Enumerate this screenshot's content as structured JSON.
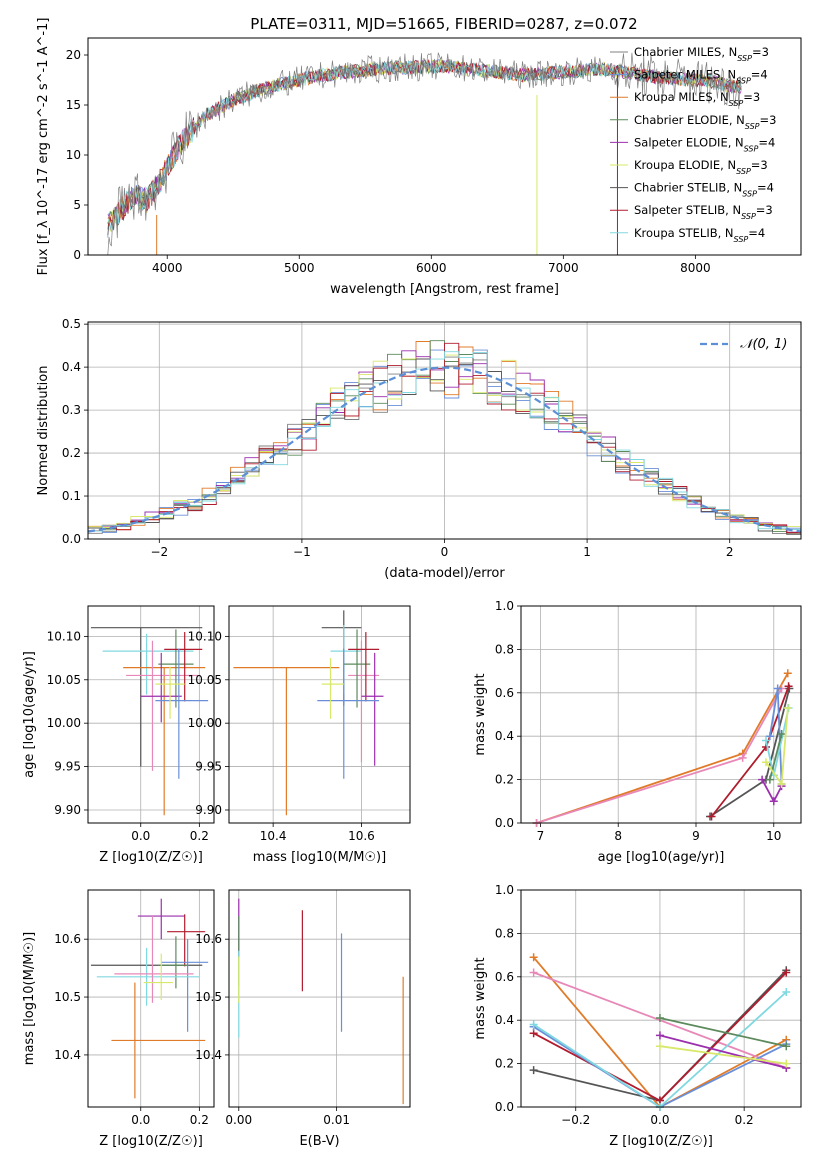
{
  "figure": {
    "title": "PLATE=0311, MJD=51665, FIBERID=0287, z=0.072"
  },
  "models": [
    {
      "name": "Chabrier MILES",
      "nssp": "3",
      "color": "#808080"
    },
    {
      "name": "Salpeter MILES",
      "nssp": "4",
      "color": "#6a8fd8"
    },
    {
      "name": "Kroupa MILES",
      "nssp": "3",
      "color": "#e07b2a"
    },
    {
      "name": "Chabrier ELODIE",
      "nssp": "3",
      "color": "#5c8a5c"
    },
    {
      "name": "Salpeter ELODIE",
      "nssp": "4",
      "color": "#9b2fae"
    },
    {
      "name": "Kroupa ELODIE",
      "nssp": "3",
      "color": "#d8e86a"
    },
    {
      "name": "Chabrier STELIB",
      "nssp": "4",
      "color": "#555555"
    },
    {
      "name": "Salpeter STELIB",
      "nssp": "3",
      "color": "#b01c2e"
    },
    {
      "name": "Kroupa STELIB",
      "nssp": "4",
      "color": "#80d8e0"
    }
  ],
  "pink_color": "#e888b8",
  "chart_data": [
    {
      "id": "spectrum",
      "type": "line",
      "xlabel": "wavelength [Angstrom, rest frame]",
      "ylabel": "Flux [f_λ 10^-17 erg cm^-2 s^-1 A^-1]",
      "xlim": [
        3400,
        8800
      ],
      "ylim": [
        0,
        21.7
      ],
      "xticks": [
        4000,
        5000,
        6000,
        7000,
        8000
      ],
      "yticks": [
        0,
        5,
        10,
        15,
        20
      ],
      "grid": false,
      "legend": "right",
      "continuum": {
        "x": [
          3550,
          3650,
          3750,
          3850,
          3950,
          4050,
          4150,
          4300,
          4500,
          4700,
          4900,
          5100,
          5300,
          5500,
          5700,
          5900,
          6100,
          6300,
          6500,
          6700,
          6900,
          7100,
          7300,
          7500,
          7700,
          7900,
          8100,
          8300
        ],
        "y": [
          3.0,
          4.5,
          6.0,
          5.5,
          7.5,
          10.0,
          12.0,
          14.0,
          15.5,
          16.5,
          17.2,
          17.8,
          18.2,
          18.5,
          18.7,
          18.8,
          18.9,
          18.6,
          18.3,
          18.0,
          18.2,
          18.4,
          18.6,
          18.2,
          17.8,
          17.6,
          17.4,
          16.8
        ]
      }
    },
    {
      "id": "residuals",
      "type": "line",
      "xlabel": "(data-model)/error",
      "ylabel": "Normed distribution",
      "xlim": [
        -2.5,
        2.5
      ],
      "ylim": [
        0,
        0.505
      ],
      "xticks": [
        -2,
        -1,
        0,
        1,
        2
      ],
      "yticks": [
        0.0,
        0.1,
        0.2,
        0.3,
        0.4,
        0.5
      ],
      "grid": true,
      "legend_label": "𝒩(0, 1)",
      "legend": "top-right",
      "gaussian_mean": 0,
      "gaussian_sigma": 1
    },
    {
      "id": "age_vs_Z",
      "type": "scatter",
      "xlabel": "Z [log10(Z/Z☉)]",
      "ylabel": "age [log10(age/yr)]",
      "xlim": [
        -0.18,
        0.25
      ],
      "ylim": [
        9.885,
        10.135
      ],
      "xticks": [
        0.0,
        0.2
      ],
      "yticks": [
        9.9,
        9.95,
        10.0,
        10.05,
        10.1
      ],
      "grid": true,
      "points": [
        {
          "c": "#555555",
          "x": 0.0,
          "xe": [
            0.17,
            0.21
          ],
          "y": 10.11,
          "ye": [
            0.16,
            0.0
          ]
        },
        {
          "c": "#80d8e0",
          "x": 0.02,
          "xe": [
            0.15,
            0.16
          ],
          "y": 10.083,
          "ye": [
            0.05,
            0.02
          ]
        },
        {
          "c": "#e07b2a",
          "x": 0.08,
          "xe": [
            0.14,
            0.14
          ],
          "y": 10.064,
          "ye": [
            0.17,
            0.0
          ]
        },
        {
          "c": "#e888b8",
          "x": 0.04,
          "xe": [
            0.09,
            0.16
          ],
          "y": 10.055,
          "ye": [
            0.11,
            0.04
          ]
        },
        {
          "c": "#5c8a5c",
          "x": 0.12,
          "xe": [
            0.06,
            0.06
          ],
          "y": 10.068,
          "ye": [
            0.05,
            0.04
          ]
        },
        {
          "c": "#b01c2e",
          "x": 0.15,
          "xe": [
            0.07,
            0.06
          ],
          "y": 10.085,
          "ye": [
            0.06,
            0.02
          ]
        },
        {
          "c": "#9b2fae",
          "x": 0.07,
          "xe": [
            0.07,
            0.07
          ],
          "y": 10.031,
          "ye": [
            0.03,
            0.05
          ]
        },
        {
          "c": "#6a8fd8",
          "x": 0.13,
          "xe": [
            0.08,
            0.1
          ],
          "y": 10.026,
          "ye": [
            0.09,
            0.06
          ]
        },
        {
          "c": "#d8e86a",
          "x": 0.1,
          "xe": [
            0.05,
            0.05
          ],
          "y": 10.045,
          "ye": [
            0.04,
            0.02
          ]
        }
      ]
    },
    {
      "id": "age_vs_mass",
      "type": "scatter",
      "xlabel": "mass [log10(M/M☉)]",
      "ylabel": "",
      "xlim": [
        10.3,
        10.71
      ],
      "ylim": [
        9.885,
        10.135
      ],
      "xticks": [
        10.4,
        10.6
      ],
      "yticks": [
        9.9,
        9.95,
        10.0,
        10.05,
        10.1
      ],
      "grid": true,
      "points": [
        {
          "c": "#555555",
          "x": 10.56,
          "xe": [
            0.05,
            0.04
          ],
          "y": 10.11,
          "ye": [
            0.09,
            0.02
          ]
        },
        {
          "c": "#80d8e0",
          "x": 10.56,
          "xe": [
            0.03,
            0.04
          ],
          "y": 10.083,
          "ye": [
            0.05,
            0.03
          ]
        },
        {
          "c": "#e07b2a",
          "x": 10.43,
          "xe": [
            0.12,
            0.12
          ],
          "y": 10.064,
          "ye": [
            0.17,
            0.0
          ]
        },
        {
          "c": "#e888b8",
          "x": 10.6,
          "xe": [
            0.03,
            0.04
          ],
          "y": 10.055,
          "ye": [
            0.1,
            0.04
          ]
        },
        {
          "c": "#5c8a5c",
          "x": 10.59,
          "xe": [
            0.03,
            0.03
          ],
          "y": 10.068,
          "ye": [
            0.05,
            0.04
          ]
        },
        {
          "c": "#b01c2e",
          "x": 10.61,
          "xe": [
            0.04,
            0.03
          ],
          "y": 10.085,
          "ye": [
            0.06,
            0.02
          ]
        },
        {
          "c": "#9b2fae",
          "x": 10.63,
          "xe": [
            0.03,
            0.02
          ],
          "y": 10.031,
          "ye": [
            0.08,
            0.05
          ]
        },
        {
          "c": "#6a8fd8",
          "x": 10.56,
          "xe": [
            0.06,
            0.08
          ],
          "y": 10.026,
          "ye": [
            0.09,
            0.06
          ]
        },
        {
          "c": "#d8e86a",
          "x": 10.53,
          "xe": [
            0.02,
            0.03
          ],
          "y": 10.045,
          "ye": [
            0.04,
            0.03
          ]
        }
      ]
    },
    {
      "id": "weight_vs_age",
      "type": "line",
      "xlabel": "age [log10(age/yr)]",
      "ylabel": "mass weight",
      "xlim": [
        6.75,
        10.35
      ],
      "ylim": [
        0,
        1.0
      ],
      "xticks": [
        7,
        8,
        9,
        10
      ],
      "yticks": [
        0.0,
        0.2,
        0.4,
        0.6,
        0.8,
        1.0
      ],
      "grid": true,
      "series": [
        {
          "c": "#e07b2a",
          "x": [
            6.95,
            9.6,
            10.18
          ],
          "y": [
            0.0,
            0.32,
            0.69
          ]
        },
        {
          "c": "#e888b8",
          "x": [
            6.95,
            9.6,
            10.1
          ],
          "y": [
            0.0,
            0.3,
            0.62
          ]
        },
        {
          "c": "#555555",
          "x": [
            9.18,
            9.9,
            10.2
          ],
          "y": [
            0.03,
            0.2,
            0.62
          ]
        },
        {
          "c": "#b01c2e",
          "x": [
            9.2,
            9.9,
            10.19
          ],
          "y": [
            0.03,
            0.35,
            0.63
          ]
        },
        {
          "c": "#6a8fd8",
          "x": [
            9.95,
            10.05,
            10.1
          ],
          "y": [
            0.4,
            0.62,
            0.18
          ]
        },
        {
          "c": "#80d8e0",
          "x": [
            9.9,
            10.0,
            10.19
          ],
          "y": [
            0.38,
            0.22,
            0.53
          ]
        },
        {
          "c": "#9b2fae",
          "x": [
            9.85,
            10.0,
            10.1
          ],
          "y": [
            0.2,
            0.1,
            0.17
          ]
        },
        {
          "c": "#5c8a5c",
          "x": [
            9.95,
            10.1
          ],
          "y": [
            0.2,
            0.41
          ]
        },
        {
          "c": "#d8e86a",
          "x": [
            9.9,
            10.1,
            10.18
          ],
          "y": [
            0.28,
            0.18,
            0.53
          ]
        }
      ]
    },
    {
      "id": "mass_vs_Z",
      "type": "scatter",
      "xlabel": "Z [log10(Z/Z☉)]",
      "ylabel": "mass [log10(M/M☉)]",
      "xlim": [
        -0.18,
        0.25
      ],
      "ylim": [
        10.31,
        10.685
      ],
      "xticks": [
        0.0,
        0.2
      ],
      "yticks": [
        10.4,
        10.5,
        10.6
      ],
      "grid": true,
      "points": [
        {
          "c": "#555555",
          "x": 0.0,
          "xe": [
            0.17,
            0.21
          ],
          "y": 10.555,
          "ye": [
            0.0,
            0.0
          ]
        },
        {
          "c": "#9b2fae",
          "x": 0.07,
          "xe": [
            0.08,
            0.08
          ],
          "y": 10.64,
          "ye": [
            0.04,
            0.03
          ]
        },
        {
          "c": "#b01c2e",
          "x": 0.15,
          "xe": [
            0.06,
            0.07
          ],
          "y": 10.613,
          "ye": [
            0.06,
            0.03
          ]
        },
        {
          "c": "#6a8fd8",
          "x": 0.16,
          "xe": [
            0.09,
            0.07
          ],
          "y": 10.56,
          "ye": [
            0.12,
            0.04
          ]
        },
        {
          "c": "#5c8a5c",
          "x": 0.12,
          "xe": [
            0.06,
            0.04
          ],
          "y": 10.555,
          "ye": [
            0.04,
            0.05
          ]
        },
        {
          "c": "#80d8e0",
          "x": 0.02,
          "xe": [
            0.17,
            0.18
          ],
          "y": 10.535,
          "ye": [
            0.05,
            0.05
          ]
        },
        {
          "c": "#e888b8",
          "x": 0.04,
          "xe": [
            0.13,
            0.14
          ],
          "y": 10.54,
          "ye": [
            0.05,
            0.1
          ]
        },
        {
          "c": "#d8e86a",
          "x": 0.07,
          "xe": [
            0.06,
            0.04
          ],
          "y": 10.525,
          "ye": [
            0.03,
            0.05
          ]
        },
        {
          "c": "#e07b2a",
          "x": -0.02,
          "xe": [
            0.08,
            0.24
          ],
          "y": 10.425,
          "ye": [
            0.1,
            0.1
          ]
        }
      ]
    },
    {
      "id": "mass_vs_EBV",
      "type": "scatter",
      "xlabel": "E(B-V)",
      "ylabel": "",
      "xlim": [
        -0.001,
        0.0175
      ],
      "ylim": [
        10.31,
        10.685
      ],
      "xticks": [
        0.0,
        0.01
      ],
      "xticklabels": [
        "0.00",
        "0.01"
      ],
      "yticks": [
        10.4,
        10.5,
        10.6
      ],
      "grid": true,
      "points": [
        {
          "c": "#9b2fae",
          "x": 0.0,
          "xe": [
            0,
            0
          ],
          "y": 10.62,
          "ye": [
            0.06,
            0.05
          ]
        },
        {
          "c": "#5c8a5c",
          "x": 0.0,
          "xe": [
            0,
            0
          ],
          "y": 10.56,
          "ye": [
            0.04,
            0.08
          ]
        },
        {
          "c": "#80d8e0",
          "x": 0.0,
          "xe": [
            0,
            0
          ],
          "y": 10.53,
          "ye": [
            0.1,
            0.05
          ]
        },
        {
          "c": "#d8e86a",
          "x": 0.0,
          "xe": [
            0,
            0
          ],
          "y": 10.52,
          "ye": [
            0.03,
            0.05
          ]
        },
        {
          "c": "#b01c2e",
          "x": 0.0065,
          "xe": [
            0,
            0
          ],
          "y": 10.6,
          "ye": [
            0.09,
            0.05
          ]
        },
        {
          "c": "#6a8fd8",
          "x": 0.0105,
          "xe": [
            0,
            0
          ],
          "y": 10.53,
          "ye": [
            0.09,
            0.08
          ]
        },
        {
          "c": "#e07b2a",
          "x": 0.0168,
          "xe": [
            0,
            0
          ],
          "y": 10.425,
          "ye": [
            0.11,
            0.11
          ]
        }
      ]
    },
    {
      "id": "weight_vs_Z",
      "type": "line",
      "xlabel": "Z [log10(Z/Z☉)]",
      "ylabel": "mass weight",
      "xlim": [
        -0.33,
        0.335
      ],
      "ylim": [
        0,
        1.0
      ],
      "xticks": [
        -0.2,
        0.0,
        0.2
      ],
      "xticklabels": [
        "−0.2",
        "0.0",
        "0.2"
      ],
      "yticks": [
        0.0,
        0.2,
        0.4,
        0.6,
        0.8,
        1.0
      ],
      "grid": true,
      "series": [
        {
          "c": "#e07b2a",
          "x": [
            -0.3,
            0.0,
            0.3
          ],
          "y": [
            0.69,
            0.0,
            0.31
          ]
        },
        {
          "c": "#e888b8",
          "x": [
            -0.3,
            0.3
          ],
          "y": [
            0.62,
            0.18
          ]
        },
        {
          "c": "#555555",
          "x": [
            -0.3,
            0.0,
            0.3
          ],
          "y": [
            0.17,
            0.03,
            0.63
          ]
        },
        {
          "c": "#b01c2e",
          "x": [
            -0.3,
            0.0,
            0.3
          ],
          "y": [
            0.34,
            0.03,
            0.62
          ]
        },
        {
          "c": "#6a8fd8",
          "x": [
            -0.3,
            0.0,
            0.3
          ],
          "y": [
            0.37,
            0.0,
            0.29
          ]
        },
        {
          "c": "#80d8e0",
          "x": [
            -0.3,
            0.0,
            0.3
          ],
          "y": [
            0.38,
            0.0,
            0.53
          ]
        },
        {
          "c": "#9b2fae",
          "x": [
            0.0,
            0.3
          ],
          "y": [
            0.33,
            0.18
          ]
        },
        {
          "c": "#5c8a5c",
          "x": [
            0.0,
            0.3
          ],
          "y": [
            0.41,
            0.28
          ]
        },
        {
          "c": "#d8e86a",
          "x": [
            0.0,
            0.3
          ],
          "y": [
            0.28,
            0.2
          ]
        }
      ]
    }
  ]
}
